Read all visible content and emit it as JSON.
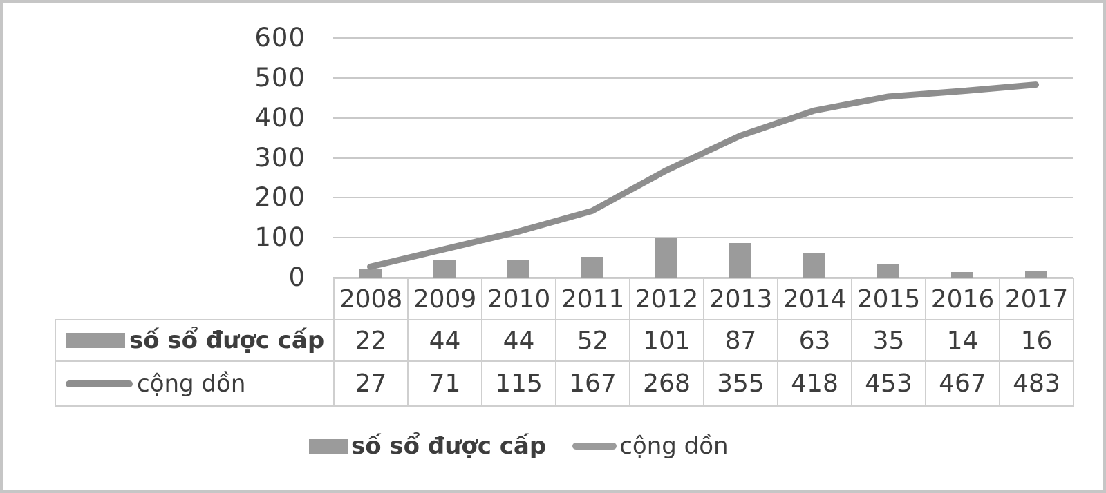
{
  "chart_data": {
    "type": "bar",
    "subtype": "combo-bar-line-with-data-table",
    "title": "",
    "xlabel": "",
    "ylabel": "",
    "categories": [
      "2008",
      "2009",
      "2010",
      "2011",
      "2012",
      "2013",
      "2014",
      "2015",
      "2016",
      "2017"
    ],
    "series": [
      {
        "name": "số sổ được cấp",
        "chart_type": "bar",
        "values": [
          22,
          44,
          44,
          52,
          101,
          87,
          63,
          35,
          14,
          16
        ],
        "color": "#9b9b9b",
        "label_bold": true
      },
      {
        "name": "cộng dồn",
        "chart_type": "line",
        "values": [
          27,
          71,
          115,
          167,
          268,
          355,
          418,
          453,
          467,
          483
        ],
        "color": "#8e8e8e",
        "label_bold": false
      }
    ],
    "ylim": [
      0,
      600
    ],
    "yticks": [
      0,
      100,
      200,
      300,
      400,
      500,
      600
    ],
    "grid": "horizontal",
    "legend_position": "bottom",
    "data_table_shown": true
  },
  "colors": {
    "bar": "#9b9b9b",
    "line": "#8e8e8e",
    "gridline": "#c9c9c9",
    "table_border": "#cfcfcf",
    "text": "#3d3d3d",
    "frame": "#c6c6c6",
    "background": "#ffffff"
  }
}
